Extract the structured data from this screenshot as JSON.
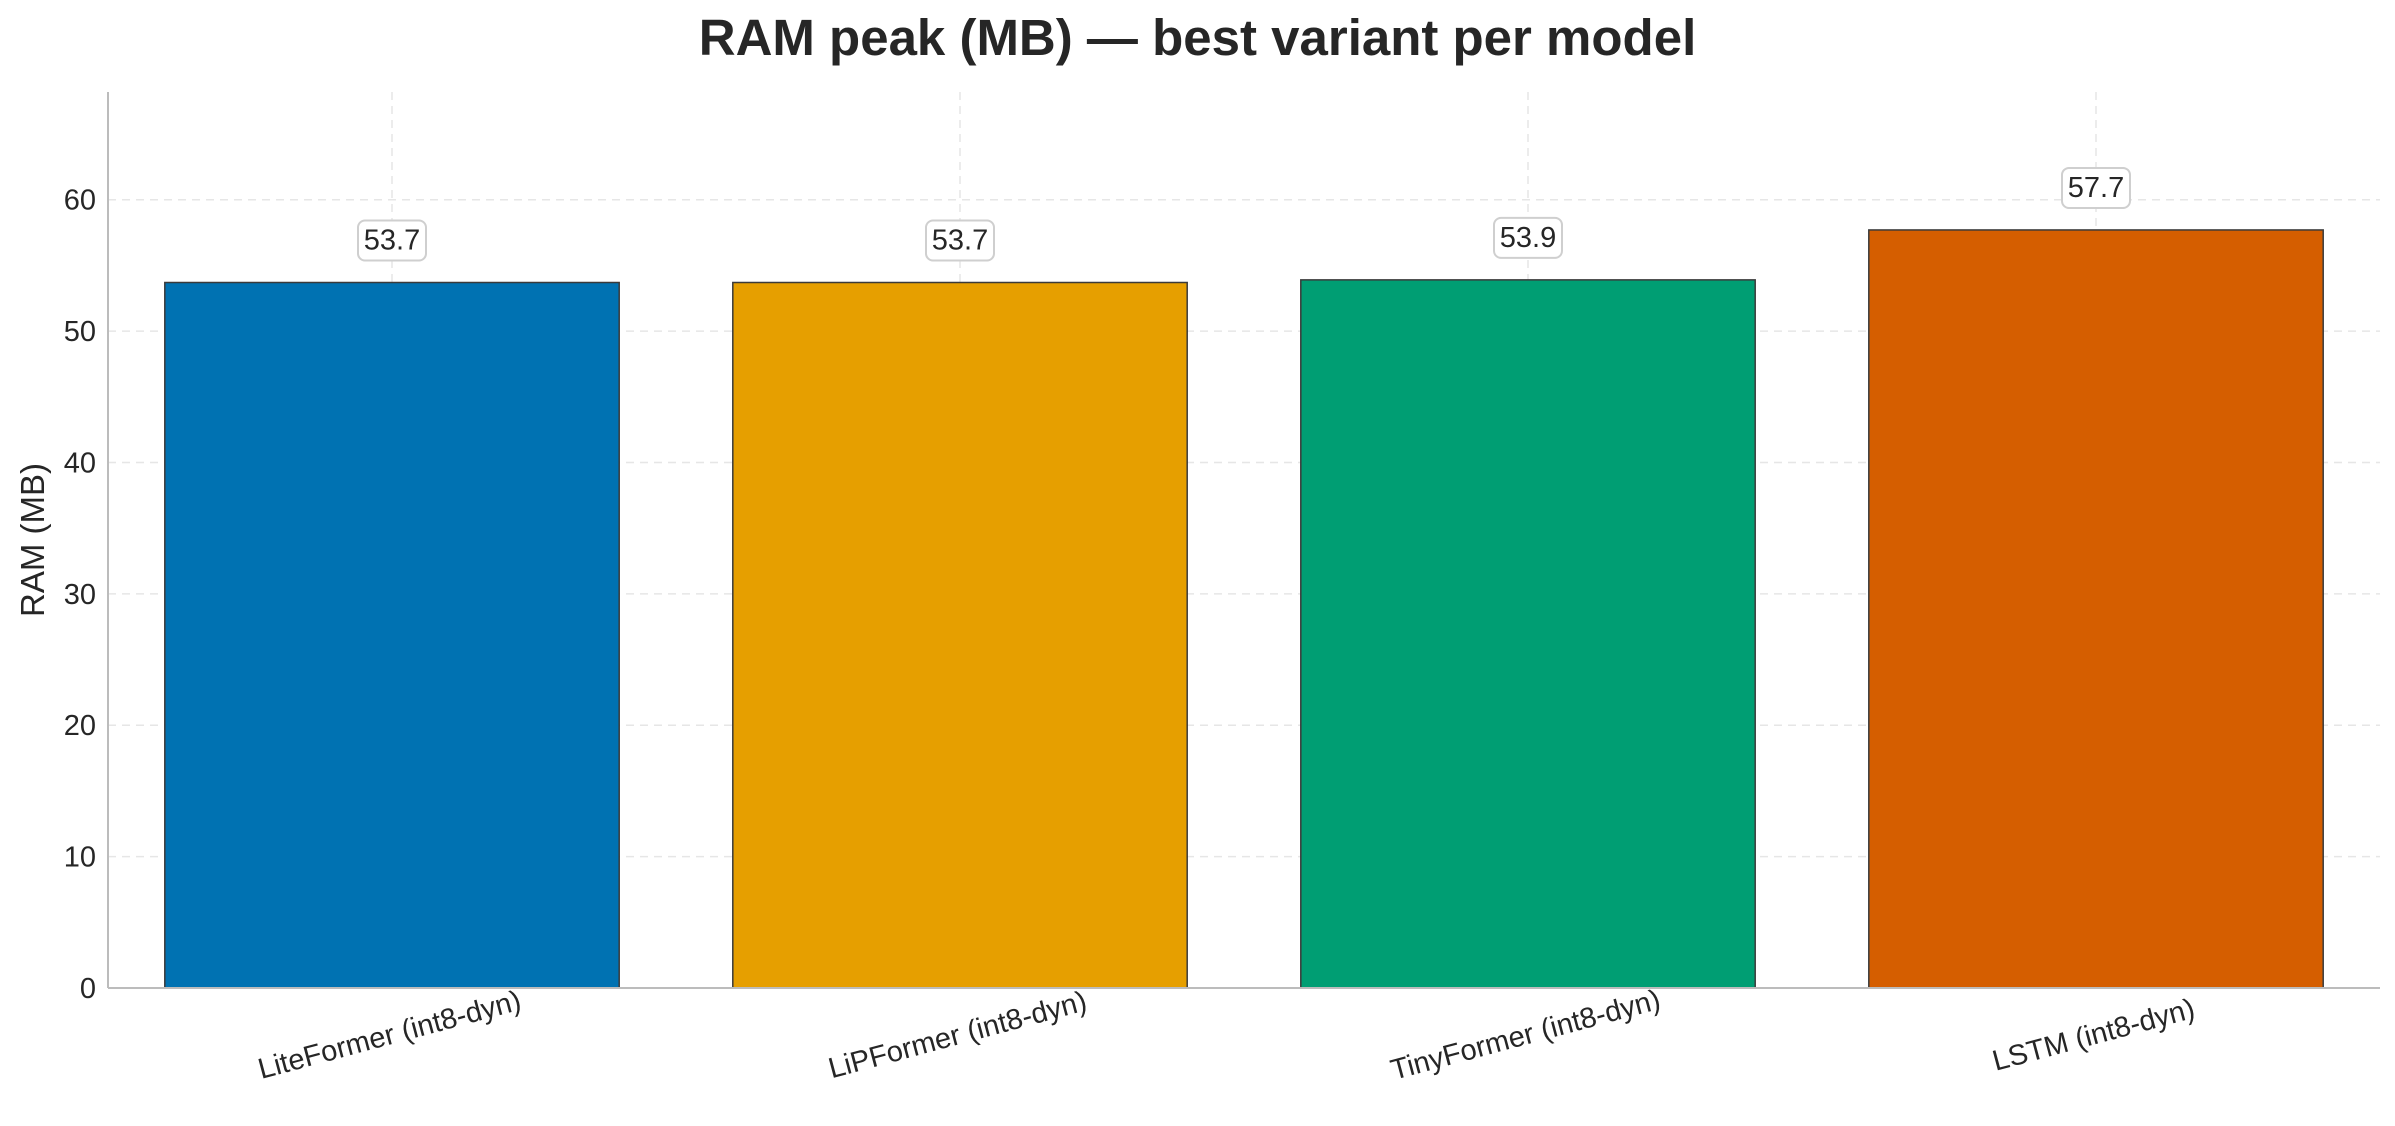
{
  "chart_data": {
    "type": "bar",
    "title": "RAM peak (MB) — best variant per model",
    "xlabel": "",
    "ylabel": "RAM (MB)",
    "categories": [
      "LiteFormer (int8-dyn)",
      "LiPFormer (int8-dyn)",
      "TinyFormer (int8-dyn)",
      "LSTM (int8-dyn)"
    ],
    "values": [
      53.7,
      53.7,
      53.9,
      57.7
    ],
    "data_labels": [
      "53.7",
      "53.7",
      "53.9",
      "57.7"
    ],
    "colors": [
      "#0072b2",
      "#e69f00",
      "#009e73",
      "#d55e00"
    ],
    "ylim": [
      0,
      68.2
    ],
    "yticks": [
      0,
      10,
      20,
      30,
      40,
      50,
      60
    ],
    "ytick_labels": [
      "0",
      "10",
      "20",
      "30",
      "40",
      "50",
      "60"
    ],
    "grid": true,
    "legend": false
  }
}
